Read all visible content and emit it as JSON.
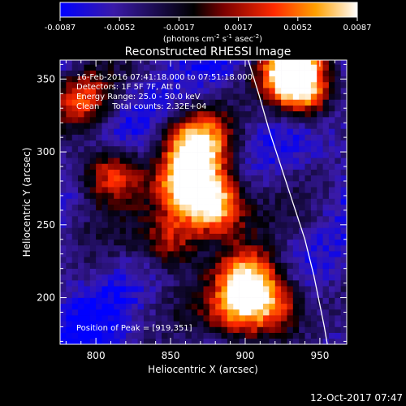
{
  "colorbar": {
    "ticks": [
      "-0.0087",
      "-0.0052",
      "-0.0017",
      "0.0017",
      "0.0052",
      "0.0087"
    ],
    "units_text": "(photons cm",
    "units_sup1": "-2",
    "units_mid": " s",
    "units_sup2": "-1",
    "units_mid2": " asec",
    "units_sup3": "-2",
    "units_end": ")",
    "range": [
      -0.0087,
      0.0087
    ],
    "colors": [
      "#0000ff",
      "#3a1aa8",
      "#000000",
      "#7a0000",
      "#ff2a00",
      "#ffa000",
      "#ffffff"
    ]
  },
  "title": "Reconstructed RHESSI Image",
  "annotations": {
    "line1": "16-Feb-2016 07:41:18.000 to 07:51:18.000",
    "line2": "Detectors: 1F 5F 7F, Att 0",
    "line3": "Energy Range: 25.0 - 50.0 keV",
    "line4": "Clean     Total counts: 2.32E+04",
    "peak": "Position of Peak = [919,351]"
  },
  "footer": {
    "timestamp": "12-Oct-2017 07:47"
  },
  "chart_data": {
    "type": "heatmap",
    "title": "Reconstructed RHESSI Image",
    "xlabel": "Heliocentric X (arcsec)",
    "ylabel": "Heliocentric Y (arcsec)",
    "xlim": [
      776,
      968
    ],
    "ylim": [
      168,
      363
    ],
    "xticks": [
      800,
      850,
      900,
      950
    ],
    "yticks": [
      200,
      250,
      300,
      350
    ],
    "peak": [
      919,
      351
    ],
    "grid": false,
    "limb_curve": {
      "x": [
        902,
        909,
        916,
        924,
        932,
        940,
        946,
        950,
        953,
        955
      ],
      "y": [
        363,
        340,
        315,
        290,
        265,
        240,
        215,
        195,
        180,
        168
      ]
    },
    "sources": [
      {
        "x": 862,
        "y": 277,
        "value": 0.0085
      },
      {
        "x": 880,
        "y": 262,
        "value": 0.0083
      },
      {
        "x": 868,
        "y": 305,
        "value": 0.0068
      },
      {
        "x": 930,
        "y": 356,
        "value": 0.0087
      },
      {
        "x": 940,
        "y": 340,
        "value": 0.006
      },
      {
        "x": 902,
        "y": 214,
        "value": 0.0062
      },
      {
        "x": 920,
        "y": 195,
        "value": 0.005
      },
      {
        "x": 810,
        "y": 286,
        "value": 0.0052
      },
      {
        "x": 790,
        "y": 336,
        "value": 0.0038
      },
      {
        "x": 850,
        "y": 240,
        "value": 0.004
      },
      {
        "x": 895,
        "y": 190,
        "value": 0.0045
      }
    ]
  }
}
